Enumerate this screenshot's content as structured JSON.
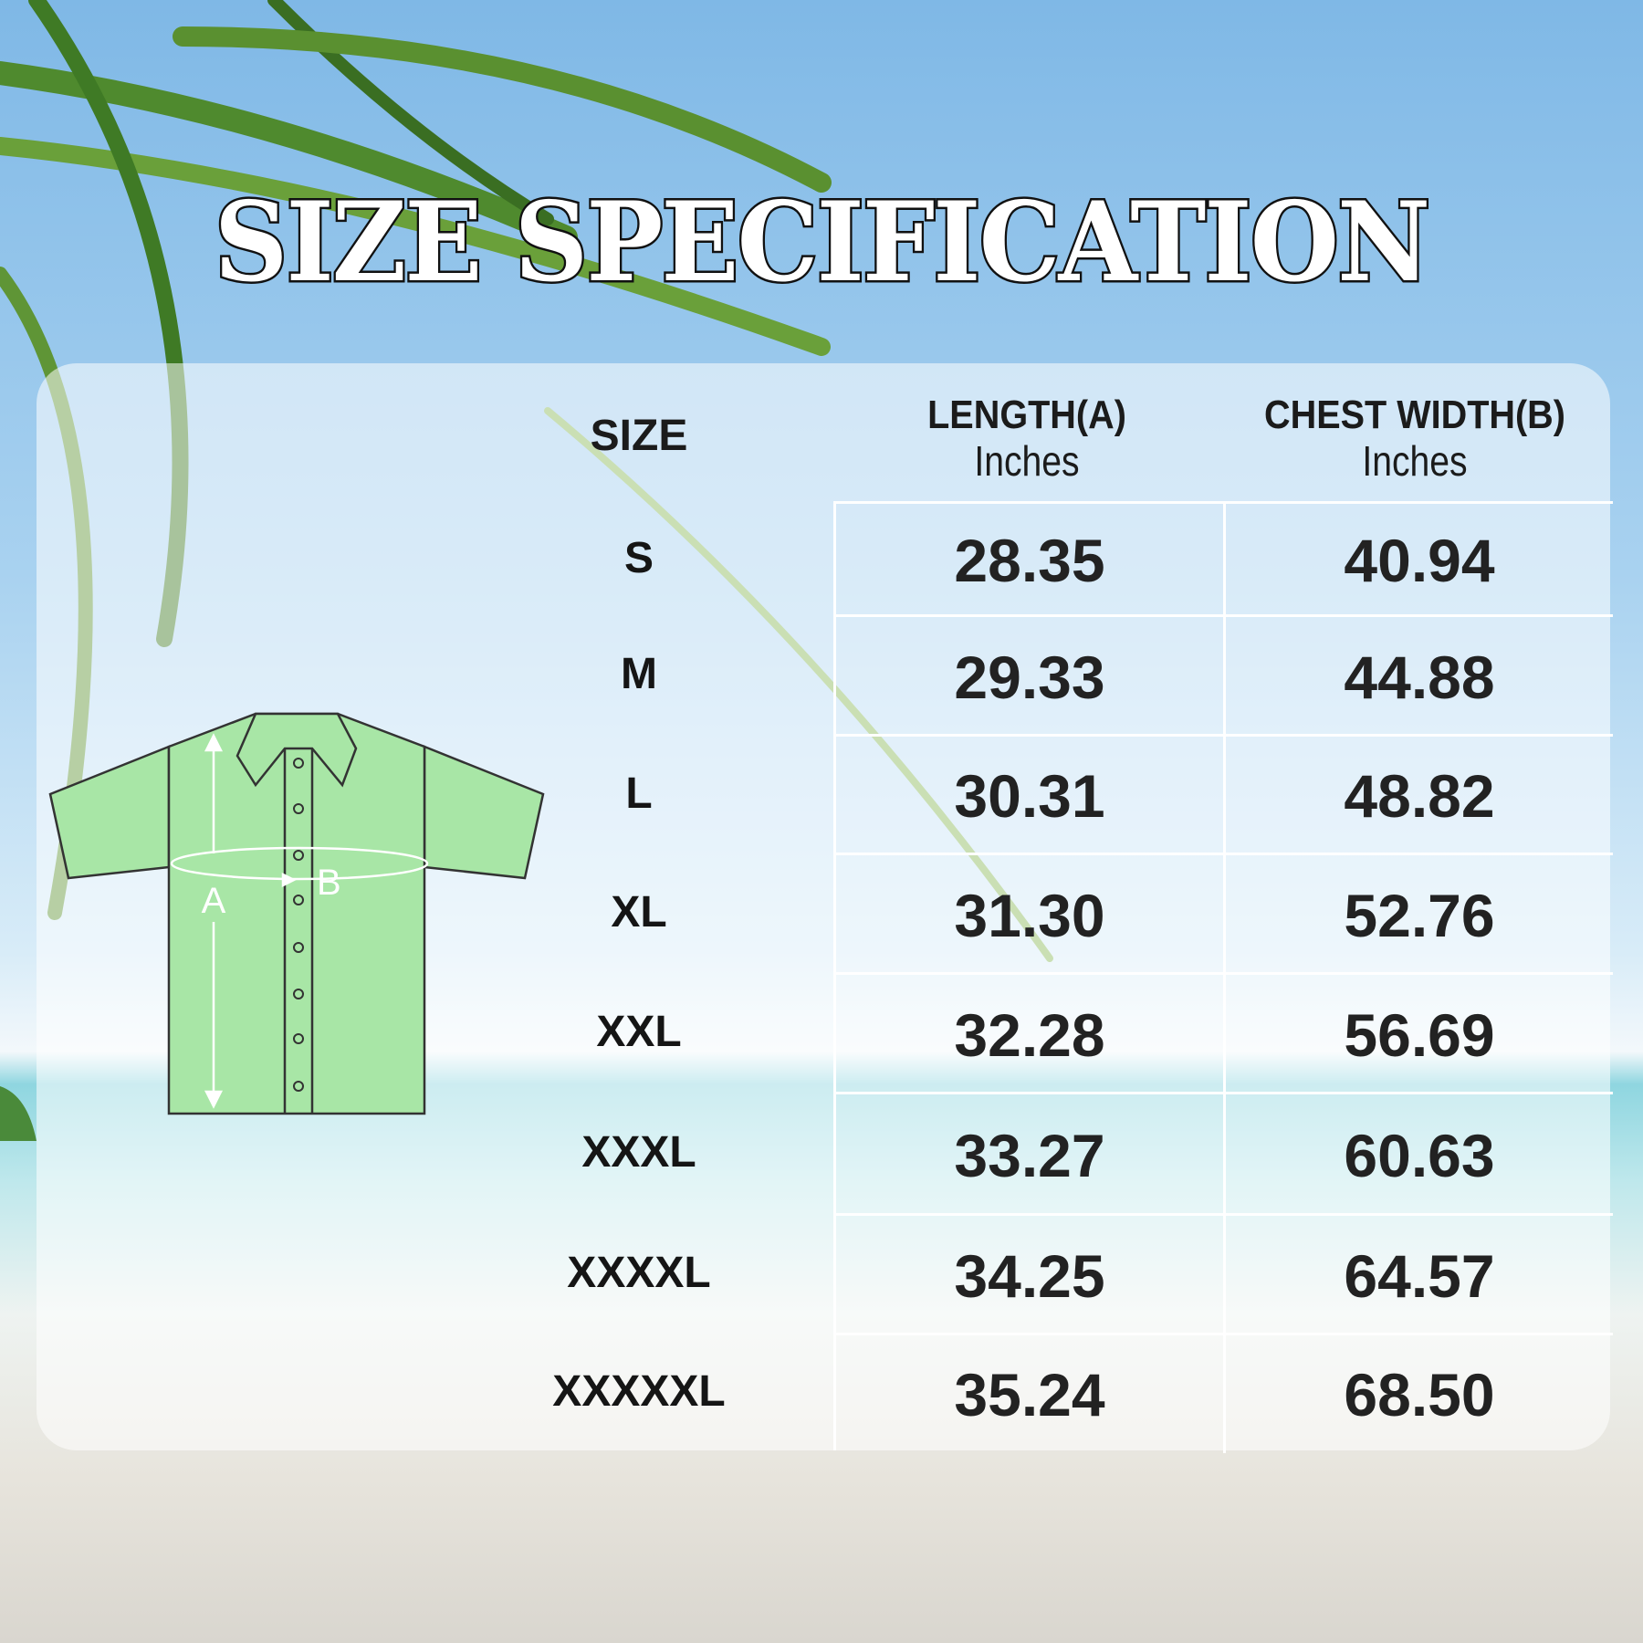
{
  "title": "SIZE SPECIFICATION",
  "table": {
    "size_header": "SIZE",
    "columns": [
      {
        "title": "LENGTH(A)",
        "unit": "Inches"
      },
      {
        "title": "CHEST WIDTH(B)",
        "unit": "Inches"
      }
    ],
    "rows": [
      {
        "size": "S",
        "length": "28.35",
        "chest": "40.94"
      },
      {
        "size": "M",
        "length": "29.33",
        "chest": "44.88"
      },
      {
        "size": "L",
        "length": "30.31",
        "chest": "48.82"
      },
      {
        "size": "XL",
        "length": "31.30",
        "chest": "52.76"
      },
      {
        "size": "XXL",
        "length": "32.28",
        "chest": "56.69"
      },
      {
        "size": "XXXL",
        "length": "33.27",
        "chest": "60.63"
      },
      {
        "size": "XXXXL",
        "length": "34.25",
        "chest": "64.57"
      },
      {
        "size": "XXXXXL",
        "length": "35.24",
        "chest": "68.50"
      }
    ]
  },
  "diagram": {
    "label_a": "A",
    "label_b": "B",
    "shirt_color": "#a8e6a6"
  }
}
